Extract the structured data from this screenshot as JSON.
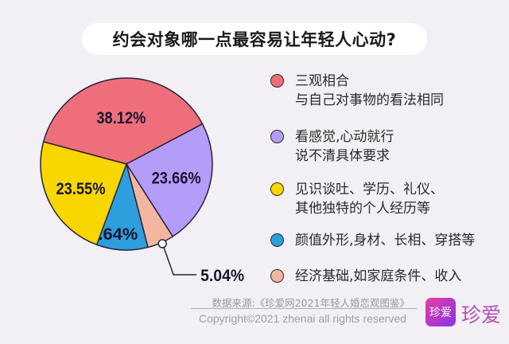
{
  "title": "约会对象哪一点最容易让年轻人心动?",
  "chart_data": {
    "type": "pie",
    "title": "约会对象哪一点最容易让年轻人心动?",
    "start_angle_deg": -75,
    "direction": "clockwise",
    "legend_placement": "right",
    "slices": [
      {
        "label": "三观相合\n与自己对事物的看法相同",
        "label_lines": [
          "三观相合",
          "与自己对事物的看法相同"
        ],
        "value": 38.12,
        "value_label": "38.12%",
        "color": "#ee6f7b"
      },
      {
        "label": "看感觉,心动就行\n说不清具体要求",
        "label_lines": [
          "看感觉,心动就行",
          "说不清具体要求"
        ],
        "value": 23.66,
        "value_label": "23.66%",
        "color": "#b49cf9"
      },
      {
        "label": "经济基础,如家庭条件、收入",
        "label_lines": [
          "经济基础,如家庭条件、收入"
        ],
        "value": 5.04,
        "value_label": "5.04%",
        "color": "#f3b7a1"
      },
      {
        "label": "颜值外形,身材、长相、穿搭等",
        "label_lines": [
          "颜值外形,身材、长相、穿搭等"
        ],
        "value": 9.64,
        "value_label": "9.64%",
        "color": "#2d9fdc"
      },
      {
        "label": "见识谈吐、学历、礼仪、\n其他独特的个人经历等",
        "label_lines": [
          "见识谈吐、学历、礼仪、",
          "其他独特的个人经历等"
        ],
        "value": 23.55,
        "value_label": "23.55%",
        "color": "#f8d700"
      }
    ],
    "legend_order": [
      0,
      1,
      4,
      3,
      2
    ]
  },
  "footer": {
    "source": "数据来源:《珍爱网2021年轻人婚恋观图鉴》",
    "copyright": "Copyright©2021  zhenai  all rights reserved",
    "logo_icon_text": "珍爱",
    "logo_text": "珍爱"
  }
}
